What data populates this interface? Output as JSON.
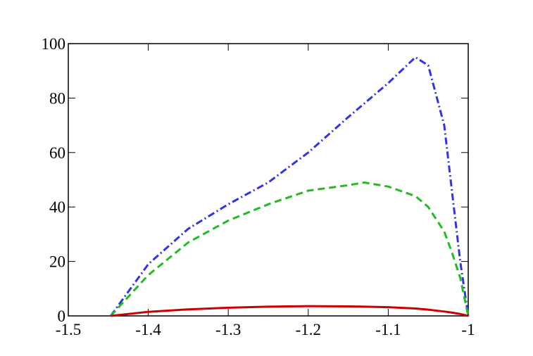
{
  "chart_data": {
    "type": "line",
    "x": [
      -1.447,
      -1.4,
      -1.35,
      -1.3,
      -1.25,
      -1.2,
      -1.15,
      -1.13,
      -1.1,
      -1.066,
      -1.05,
      -1.03,
      -1.02,
      -1.01,
      -1
    ],
    "series": [
      {
        "color": "#3333e6",
        "dash": "10,4,2,4",
        "values": [
          0,
          19,
          32,
          41,
          49,
          60,
          73,
          78,
          85.5,
          95,
          92,
          70,
          45,
          20,
          0
        ]
      },
      {
        "color": "#22bb22",
        "dash": "10,6",
        "values": [
          0,
          15,
          27,
          35,
          41,
          46,
          48,
          49,
          47.5,
          44,
          40,
          31,
          23,
          14,
          0
        ]
      },
      {
        "color": "#cc0000",
        "dash": "none",
        "values": [
          0,
          1.5,
          2.4,
          3,
          3.4,
          3.6,
          3.5,
          3.4,
          3.2,
          2.7,
          2.3,
          1.6,
          1.2,
          0.7,
          0
        ]
      }
    ],
    "xlim": [
      -1.5,
      -1
    ],
    "xticks": [
      -1.5,
      -1.4,
      -1.3,
      -1.2,
      -1.1,
      -1
    ],
    "ylim": [
      0,
      100
    ],
    "yticks": [
      0,
      20,
      40,
      60,
      80,
      100
    ]
  }
}
